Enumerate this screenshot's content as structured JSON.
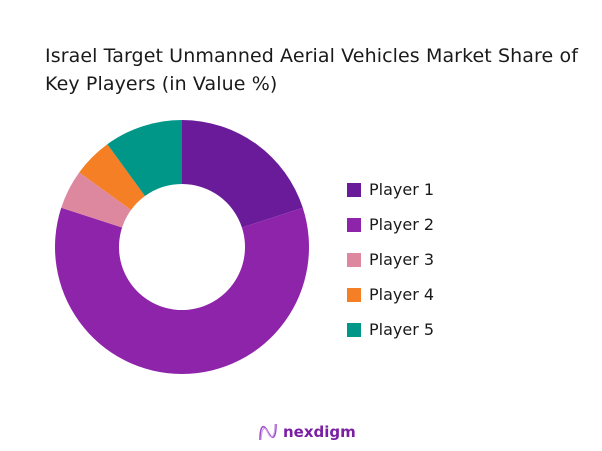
{
  "title": "Israel Target Unmanned Aerial Vehicles Market Share of Key Players (in Value %)",
  "brand": {
    "name": "nexdigm",
    "icon": "nexdigm-wave-logo-icon",
    "color": "#7a1fa2"
  },
  "legend": [
    {
      "label": "Player 1",
      "color": "#6a1b9a"
    },
    {
      "label": "Player 2",
      "color": "#8e24aa"
    },
    {
      "label": "Player 3",
      "color": "#de88a0"
    },
    {
      "label": "Player 4",
      "color": "#f47f24"
    },
    {
      "label": "Player 5",
      "color": "#009688"
    }
  ],
  "chart_data": {
    "type": "pie",
    "variant": "donut",
    "title": "Israel Target Unmanned Aerial Vehicles Market Share of Key Players (in Value %)",
    "categories": [
      "Player 1",
      "Player 2",
      "Player 3",
      "Player 4",
      "Player 5"
    ],
    "values": [
      20,
      60,
      5,
      5,
      10
    ],
    "unit": "%",
    "colors": [
      "#6a1b9a",
      "#8e24aa",
      "#de88a0",
      "#f47f24",
      "#009688"
    ],
    "start_angle": "12 o'clock, clockwise",
    "legend_position": "right",
    "data_labels": false
  }
}
